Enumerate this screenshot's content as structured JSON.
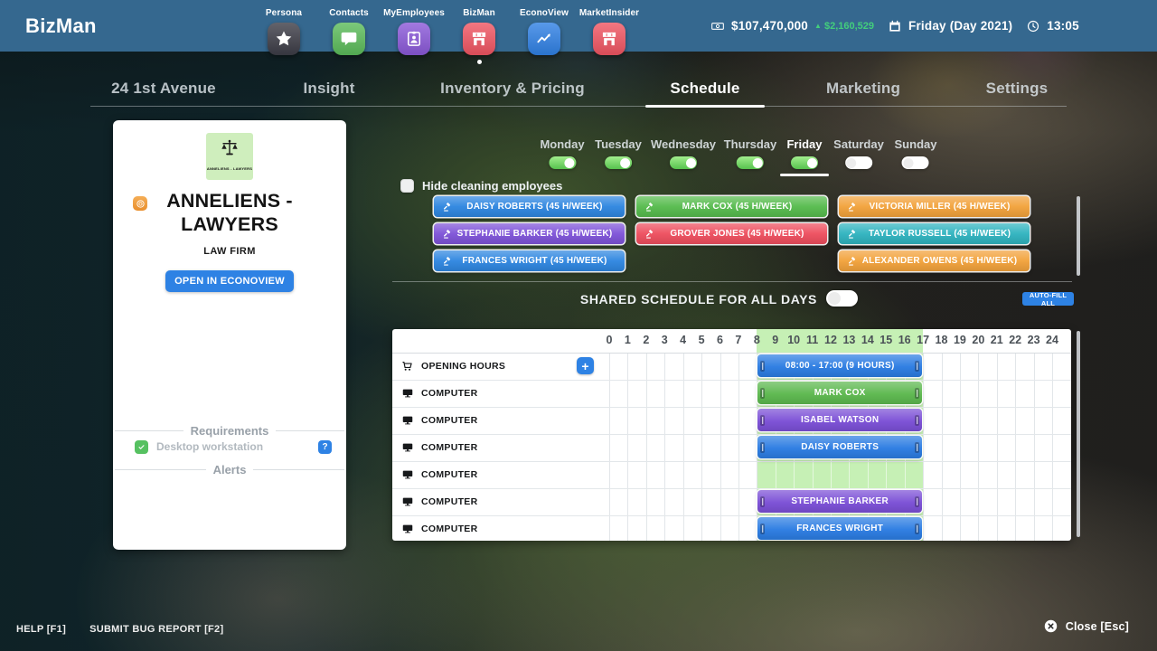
{
  "topbar": {
    "brand": "BizMan",
    "apps": [
      {
        "label": "Persona",
        "icon": "star-icon",
        "color": "#3c3c46",
        "active": false
      },
      {
        "label": "Contacts",
        "icon": "chat-icon",
        "color": "#5bbb5a",
        "active": false
      },
      {
        "label": "MyEmployees",
        "icon": "badge-icon",
        "color": "#8a58d8",
        "active": false
      },
      {
        "label": "BizMan",
        "icon": "storefront-icon",
        "color": "#f05562",
        "active": true
      },
      {
        "label": "EconoView",
        "icon": "chart-icon",
        "color": "#2f80e4",
        "active": false
      },
      {
        "label": "MarketInsider",
        "icon": "storefront-icon",
        "color": "#f05562",
        "active": false
      }
    ],
    "money": "$107,470,000",
    "money_delta": "$2,160,529",
    "date": "Friday (Day 2021)",
    "time": "13:05"
  },
  "tabs": [
    {
      "label": "24 1st Avenue",
      "active": false
    },
    {
      "label": "Insight",
      "active": false
    },
    {
      "label": "Inventory & Pricing",
      "active": false
    },
    {
      "label": "Schedule",
      "active": true
    },
    {
      "label": "Marketing",
      "active": false
    },
    {
      "label": "Settings",
      "active": false
    }
  ],
  "card": {
    "logo_caption": "ANNELIENS - LAWYERS",
    "name": "ANNELIENS - LAWYERS",
    "type": "LAW FIRM",
    "open_button": "OPEN IN ECONOVIEW",
    "requirements_title": "Requirements",
    "requirements": [
      {
        "label": "Desktop workstation",
        "met": true
      }
    ],
    "alerts_title": "Alerts"
  },
  "schedule": {
    "days": [
      {
        "label": "Monday",
        "enabled": true,
        "selected": false
      },
      {
        "label": "Tuesday",
        "enabled": true,
        "selected": false
      },
      {
        "label": "Wednesday",
        "enabled": true,
        "selected": false
      },
      {
        "label": "Thursday",
        "enabled": true,
        "selected": false
      },
      {
        "label": "Friday",
        "enabled": true,
        "selected": true
      },
      {
        "label": "Saturday",
        "enabled": false,
        "selected": false
      },
      {
        "label": "Sunday",
        "enabled": false,
        "selected": false
      }
    ],
    "hide_cleaning_label": "Hide cleaning employees",
    "hide_cleaning_checked": false,
    "employee_columns": [
      [
        {
          "name": "DAISY ROBERTS (45 H/WEEK)",
          "color": "#2e86e0"
        },
        {
          "name": "STEPHANIE BARKER (45 H/WEEK)",
          "color": "#7e53d8"
        },
        {
          "name": "FRANCES WRIGHT (45 H/WEEK)",
          "color": "#2e86e0"
        }
      ],
      [
        {
          "name": "MARK COX (45 H/WEEK)",
          "color": "#56bb4d"
        },
        {
          "name": "GROVER JONES (45 H/WEEK)",
          "color": "#ee4e5e"
        }
      ],
      [
        {
          "name": "VICTORIA MILLER (45 H/WEEK)",
          "color": "#f2a23b"
        },
        {
          "name": "TAYLOR RUSSELL (45 H/WEEK)",
          "color": "#2fb3bf"
        },
        {
          "name": "ALEXANDER OWENS (45 H/WEEK)",
          "color": "#f2a23b"
        }
      ]
    ],
    "shared_label": "SHARED SCHEDULE FOR ALL DAYS",
    "shared_on": false,
    "autofill_label": "AUTO-FILL ALL",
    "hours_start": 0,
    "hours_end": 24,
    "highlight_start": 8,
    "highlight_end": 17,
    "bar_colors": {
      "blue": "#2b7ce2",
      "green": "#5cb84e",
      "purple": "#7b4fd6"
    },
    "rows": [
      {
        "label": "OPENING HOURS",
        "icon": "cart-icon",
        "add_button": true,
        "bar": {
          "label": "08:00 - 17:00 (9 HOURS)",
          "color": "blue",
          "start": 8,
          "end": 17
        }
      },
      {
        "label": "COMPUTER",
        "icon": "computer-icon",
        "add_button": false,
        "bar": {
          "label": "MARK COX",
          "color": "green",
          "start": 8,
          "end": 17
        }
      },
      {
        "label": "COMPUTER",
        "icon": "computer-icon",
        "add_button": false,
        "bar": {
          "label": "ISABEL WATSON",
          "color": "purple",
          "start": 8,
          "end": 17
        }
      },
      {
        "label": "COMPUTER",
        "icon": "computer-icon",
        "add_button": false,
        "bar": {
          "label": "DAISY ROBERTS",
          "color": "blue",
          "start": 8,
          "end": 17
        }
      },
      {
        "label": "COMPUTER",
        "icon": "computer-icon",
        "add_button": false,
        "bar": null
      },
      {
        "label": "COMPUTER",
        "icon": "computer-icon",
        "add_button": false,
        "bar": {
          "label": "STEPHANIE BARKER",
          "color": "purple",
          "start": 8,
          "end": 17
        }
      },
      {
        "label": "COMPUTER",
        "icon": "computer-icon",
        "add_button": false,
        "bar": {
          "label": "FRANCES WRIGHT",
          "color": "blue",
          "start": 8,
          "end": 17
        }
      }
    ]
  },
  "footer": {
    "help": "HELP [F1]",
    "bug": "SUBMIT BUG REPORT [F2]",
    "close": "Close [Esc]"
  }
}
